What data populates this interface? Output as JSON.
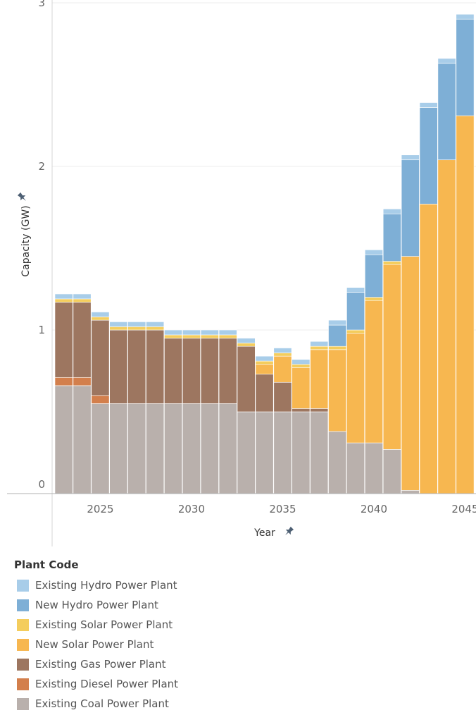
{
  "chart_data": {
    "type": "bar",
    "stacked": true,
    "xlabel": "Year",
    "ylabel": "Capacity (GW)",
    "ylim": [
      0,
      3
    ],
    "yticks": [
      0,
      1,
      2,
      3
    ],
    "xticks": [
      2025,
      2030,
      2035,
      2040,
      2045
    ],
    "grid": true,
    "legend_title": "Plant Code",
    "legend_position": "bottom",
    "x": [
      2023,
      2024,
      2025,
      2026,
      2027,
      2028,
      2029,
      2030,
      2031,
      2032,
      2033,
      2034,
      2035,
      2036,
      2037,
      2038,
      2039,
      2040,
      2041,
      2042,
      2043,
      2044,
      2045
    ],
    "series": [
      {
        "name": "Existing Coal Power Plant",
        "color": "#B9B0AC",
        "values": [
          0.66,
          0.66,
          0.55,
          0.55,
          0.55,
          0.55,
          0.55,
          0.55,
          0.55,
          0.55,
          0.5,
          0.5,
          0.5,
          0.5,
          0.5,
          0.38,
          0.31,
          0.31,
          0.27,
          0.02,
          0,
          0,
          0
        ]
      },
      {
        "name": "Existing Diesel Power Plant",
        "color": "#D37F4C",
        "values": [
          0.05,
          0.05,
          0.05,
          0,
          0,
          0,
          0,
          0,
          0,
          0,
          0,
          0,
          0,
          0,
          0,
          0,
          0,
          0,
          0,
          0,
          0,
          0,
          0
        ]
      },
      {
        "name": "Existing Gas Power Plant",
        "color": "#9D7660",
        "values": [
          0.46,
          0.46,
          0.46,
          0.45,
          0.45,
          0.45,
          0.4,
          0.4,
          0.4,
          0.4,
          0.4,
          0.23,
          0.18,
          0.02,
          0.02,
          0,
          0,
          0,
          0,
          0,
          0,
          0,
          0
        ]
      },
      {
        "name": "New Solar Power Plant",
        "color": "#F7B750",
        "values": [
          0,
          0,
          0,
          0,
          0,
          0,
          0,
          0,
          0,
          0,
          0,
          0.06,
          0.16,
          0.25,
          0.36,
          0.5,
          0.67,
          0.87,
          1.13,
          1.43,
          1.77,
          2.04,
          2.31
        ]
      },
      {
        "name": "Existing Solar Power Plant",
        "color": "#F4CD5D",
        "values": [
          0.02,
          0.02,
          0.02,
          0.02,
          0.02,
          0.02,
          0.02,
          0.02,
          0.02,
          0.02,
          0.02,
          0.02,
          0.02,
          0.02,
          0.02,
          0.02,
          0.02,
          0.02,
          0.02,
          0,
          0,
          0,
          0
        ]
      },
      {
        "name": "New Hydro Power Plant",
        "color": "#7EAFD6",
        "values": [
          0,
          0,
          0,
          0,
          0,
          0,
          0,
          0,
          0,
          0,
          0,
          0,
          0,
          0,
          0,
          0.13,
          0.23,
          0.26,
          0.29,
          0.59,
          0.59,
          0.59,
          0.59
        ]
      },
      {
        "name": "Existing Hydro Power Plant",
        "color": "#A8CDE9",
        "values": [
          0.03,
          0.03,
          0.03,
          0.03,
          0.03,
          0.03,
          0.03,
          0.03,
          0.03,
          0.03,
          0.03,
          0.03,
          0.03,
          0.03,
          0.03,
          0.03,
          0.03,
          0.03,
          0.03,
          0.03,
          0.03,
          0.03,
          0.03
        ]
      }
    ]
  },
  "legend_order": [
    6,
    5,
    4,
    3,
    2,
    1,
    0
  ]
}
